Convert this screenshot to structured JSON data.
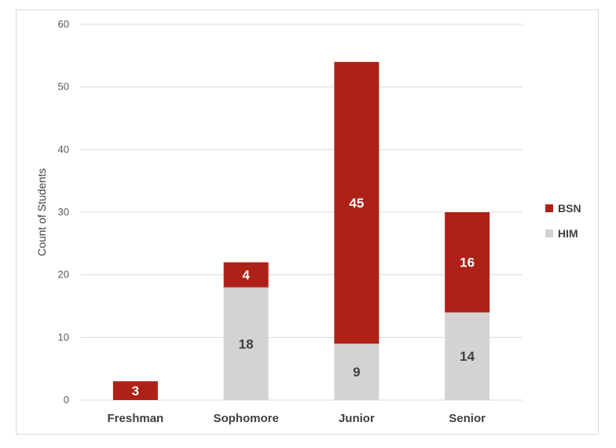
{
  "chart_data": {
    "type": "bar",
    "stacked": true,
    "categories": [
      "Freshman",
      "Sophomore",
      "Junior",
      "Senior"
    ],
    "series": [
      {
        "name": "HIM",
        "color": "#d3d3d3",
        "label_color": "#404040",
        "values": [
          0,
          18,
          9,
          14
        ]
      },
      {
        "name": "BSN",
        "color": "#ae2117",
        "label_color": "#ffffff",
        "values": [
          3,
          4,
          45,
          16
        ]
      }
    ],
    "title": "",
    "xlabel": "",
    "ylabel": "Count of Students",
    "ylim": [
      0,
      60
    ],
    "yticks": [
      0,
      10,
      20,
      30,
      40,
      50,
      60
    ],
    "grid": true,
    "legend": {
      "position": "right",
      "order": [
        "BSN",
        "HIM"
      ]
    }
  }
}
